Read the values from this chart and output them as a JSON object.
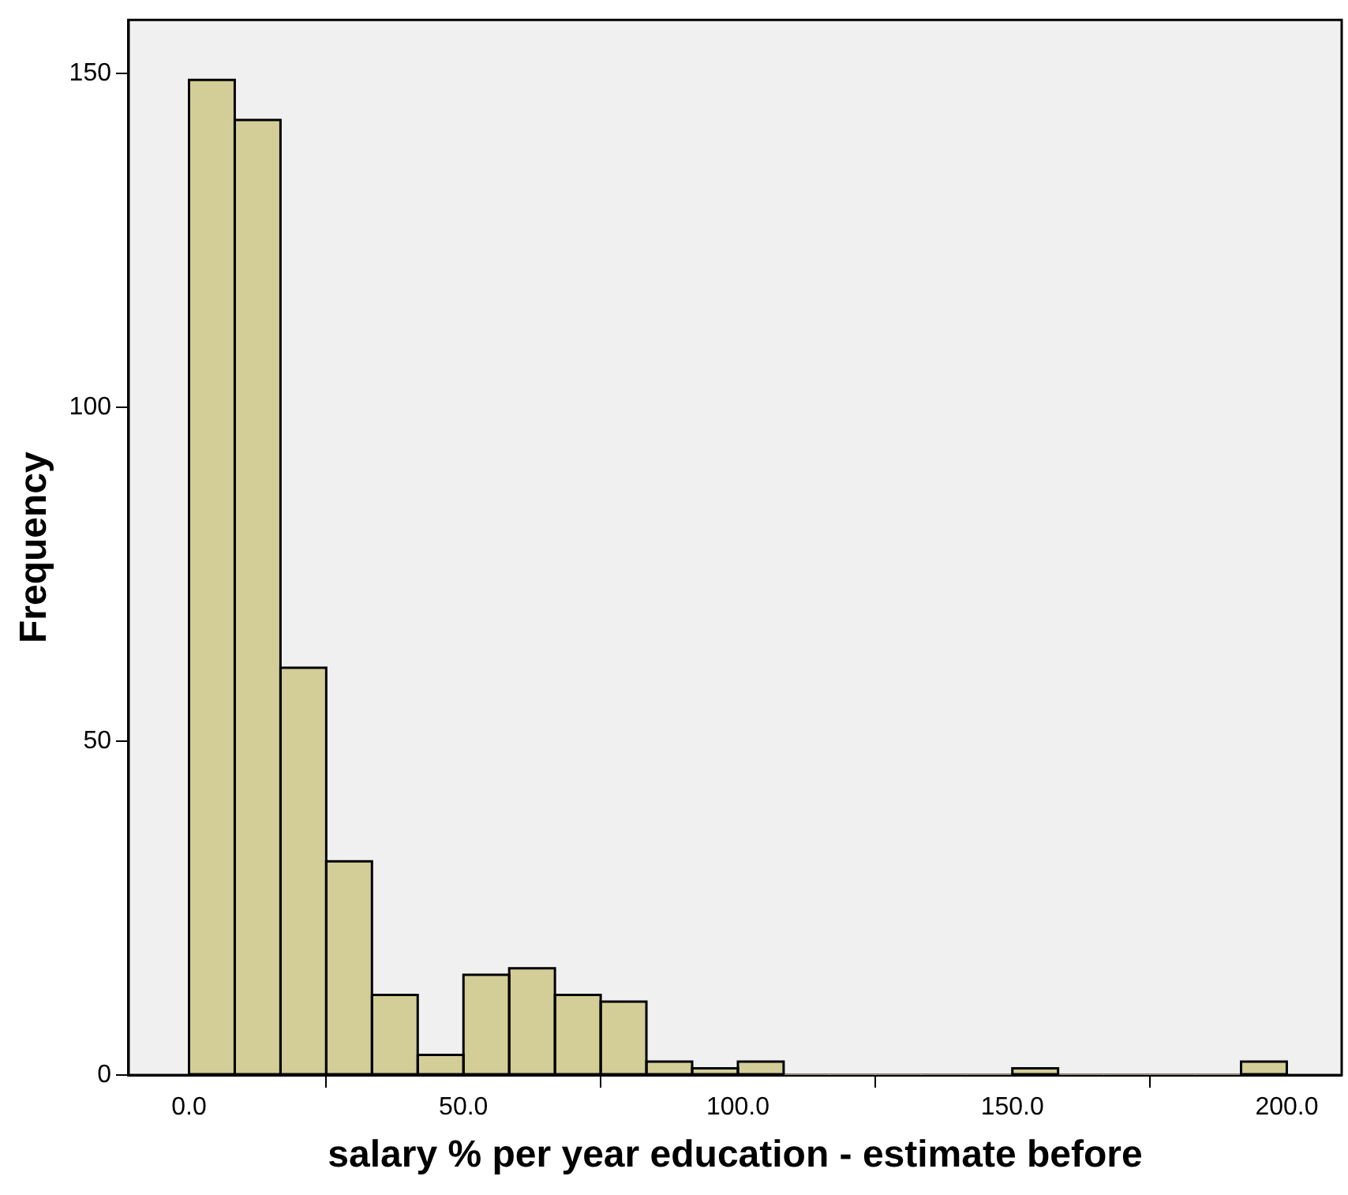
{
  "chart_data": {
    "type": "histogram",
    "xlabel": "salary % per year education - estimate before",
    "ylabel": "Frequency",
    "bins": [
      0,
      8.33,
      16.67,
      25,
      33.33,
      41.67,
      50,
      58.33,
      66.67,
      75,
      83.33,
      91.67,
      100,
      108.33,
      116.67,
      125,
      133.33,
      141.67,
      150,
      158.33,
      166.67,
      175,
      183.33,
      191.67,
      200
    ],
    "values": [
      149,
      143,
      61,
      32,
      12,
      3,
      15,
      16,
      12,
      11,
      2,
      1,
      2,
      0,
      0,
      0,
      0,
      0,
      1,
      0,
      0,
      0,
      0,
      2
    ],
    "color": "#d3ce97",
    "xlim": [
      -11,
      210
    ],
    "xticks": [
      {
        "value": 0,
        "label": "0.0"
      },
      {
        "value": 50,
        "label": "50.0"
      },
      {
        "value": 100,
        "label": "100.0"
      },
      {
        "value": 150,
        "label": "150.0"
      },
      {
        "value": 200,
        "label": "200.0"
      }
    ],
    "ylim": [
      0,
      158
    ],
    "yticks": [
      0,
      50,
      100,
      150
    ],
    "grid": false,
    "legend": false
  }
}
